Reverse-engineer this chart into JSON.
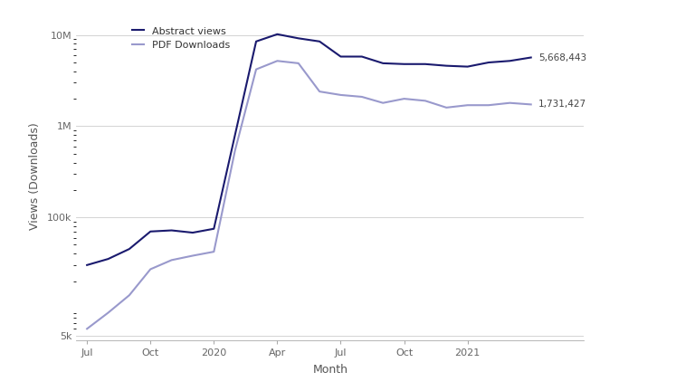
{
  "title": "",
  "xlabel": "Month",
  "ylabel": "Views (Downloads)",
  "abstract_views_color": "#1a1a6e",
  "pdf_downloads_color": "#9999cc",
  "background_color": "#ffffff",
  "grid_color": "#cccccc",
  "annotation_views": "5,668,443",
  "annotation_downloads": "1,731,427",
  "abstract_views": [
    30000,
    35000,
    45000,
    70000,
    72000,
    68000,
    75000,
    800000,
    8500000,
    10200000,
    9200000,
    8500000,
    5800000,
    5800000,
    4900000,
    4800000,
    4800000,
    4600000,
    4500000,
    5000000,
    5200000,
    5668443
  ],
  "pdf_downloads": [
    6000,
    9000,
    14000,
    27000,
    34000,
    38000,
    42000,
    540000,
    4200000,
    5200000,
    4900000,
    2400000,
    2200000,
    2100000,
    1800000,
    2000000,
    1900000,
    1600000,
    1700000,
    1700000,
    1800000,
    1731427
  ],
  "x_tick_positions": [
    0,
    3,
    6,
    9,
    12,
    15,
    18
  ],
  "x_tick_labels": [
    "Jul",
    "Oct",
    "2020",
    "Apr",
    "Jul",
    "Oct",
    "2021"
  ],
  "yticks": [
    5000,
    100000,
    1000000,
    10000000
  ],
  "ytick_labels": [
    "5k",
    "100k",
    "1M",
    "10M"
  ],
  "ylim_min": 4500,
  "ylim_max": 18000000,
  "legend_labels": [
    "Abstract views",
    "PDF Downloads"
  ],
  "line_width": 1.5
}
